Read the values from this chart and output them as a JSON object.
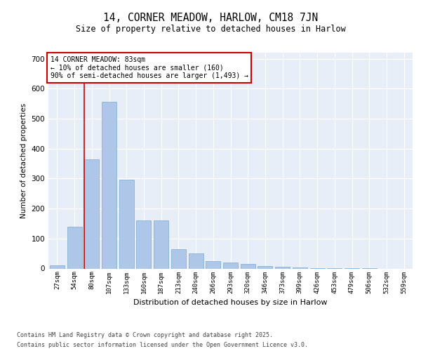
{
  "title1": "14, CORNER MEADOW, HARLOW, CM18 7JN",
  "title2": "Size of property relative to detached houses in Harlow",
  "xlabel": "Distribution of detached houses by size in Harlow",
  "ylabel": "Number of detached properties",
  "categories": [
    "27sqm",
    "54sqm",
    "80sqm",
    "107sqm",
    "133sqm",
    "160sqm",
    "187sqm",
    "213sqm",
    "240sqm",
    "266sqm",
    "293sqm",
    "320sqm",
    "346sqm",
    "373sqm",
    "399sqm",
    "426sqm",
    "453sqm",
    "479sqm",
    "506sqm",
    "532sqm",
    "559sqm"
  ],
  "values": [
    10,
    140,
    365,
    555,
    297,
    160,
    160,
    65,
    50,
    25,
    20,
    15,
    8,
    5,
    3,
    2,
    1,
    1,
    1,
    0,
    0
  ],
  "bar_color": "#aec6e8",
  "bar_edge_color": "#7aaad0",
  "bg_color": "#e8eef7",
  "grid_color": "#ffffff",
  "red_line_index": 2,
  "annotation_line1": "14 CORNER MEADOW: 83sqm",
  "annotation_line2": "← 10% of detached houses are smaller (160)",
  "annotation_line3": "90% of semi-detached houses are larger (1,493) →",
  "annotation_box_color": "#cc0000",
  "ylim": [
    0,
    720
  ],
  "yticks": [
    0,
    100,
    200,
    300,
    400,
    500,
    600,
    700
  ],
  "footer1": "Contains HM Land Registry data © Crown copyright and database right 2025.",
  "footer2": "Contains public sector information licensed under the Open Government Licence v3.0."
}
